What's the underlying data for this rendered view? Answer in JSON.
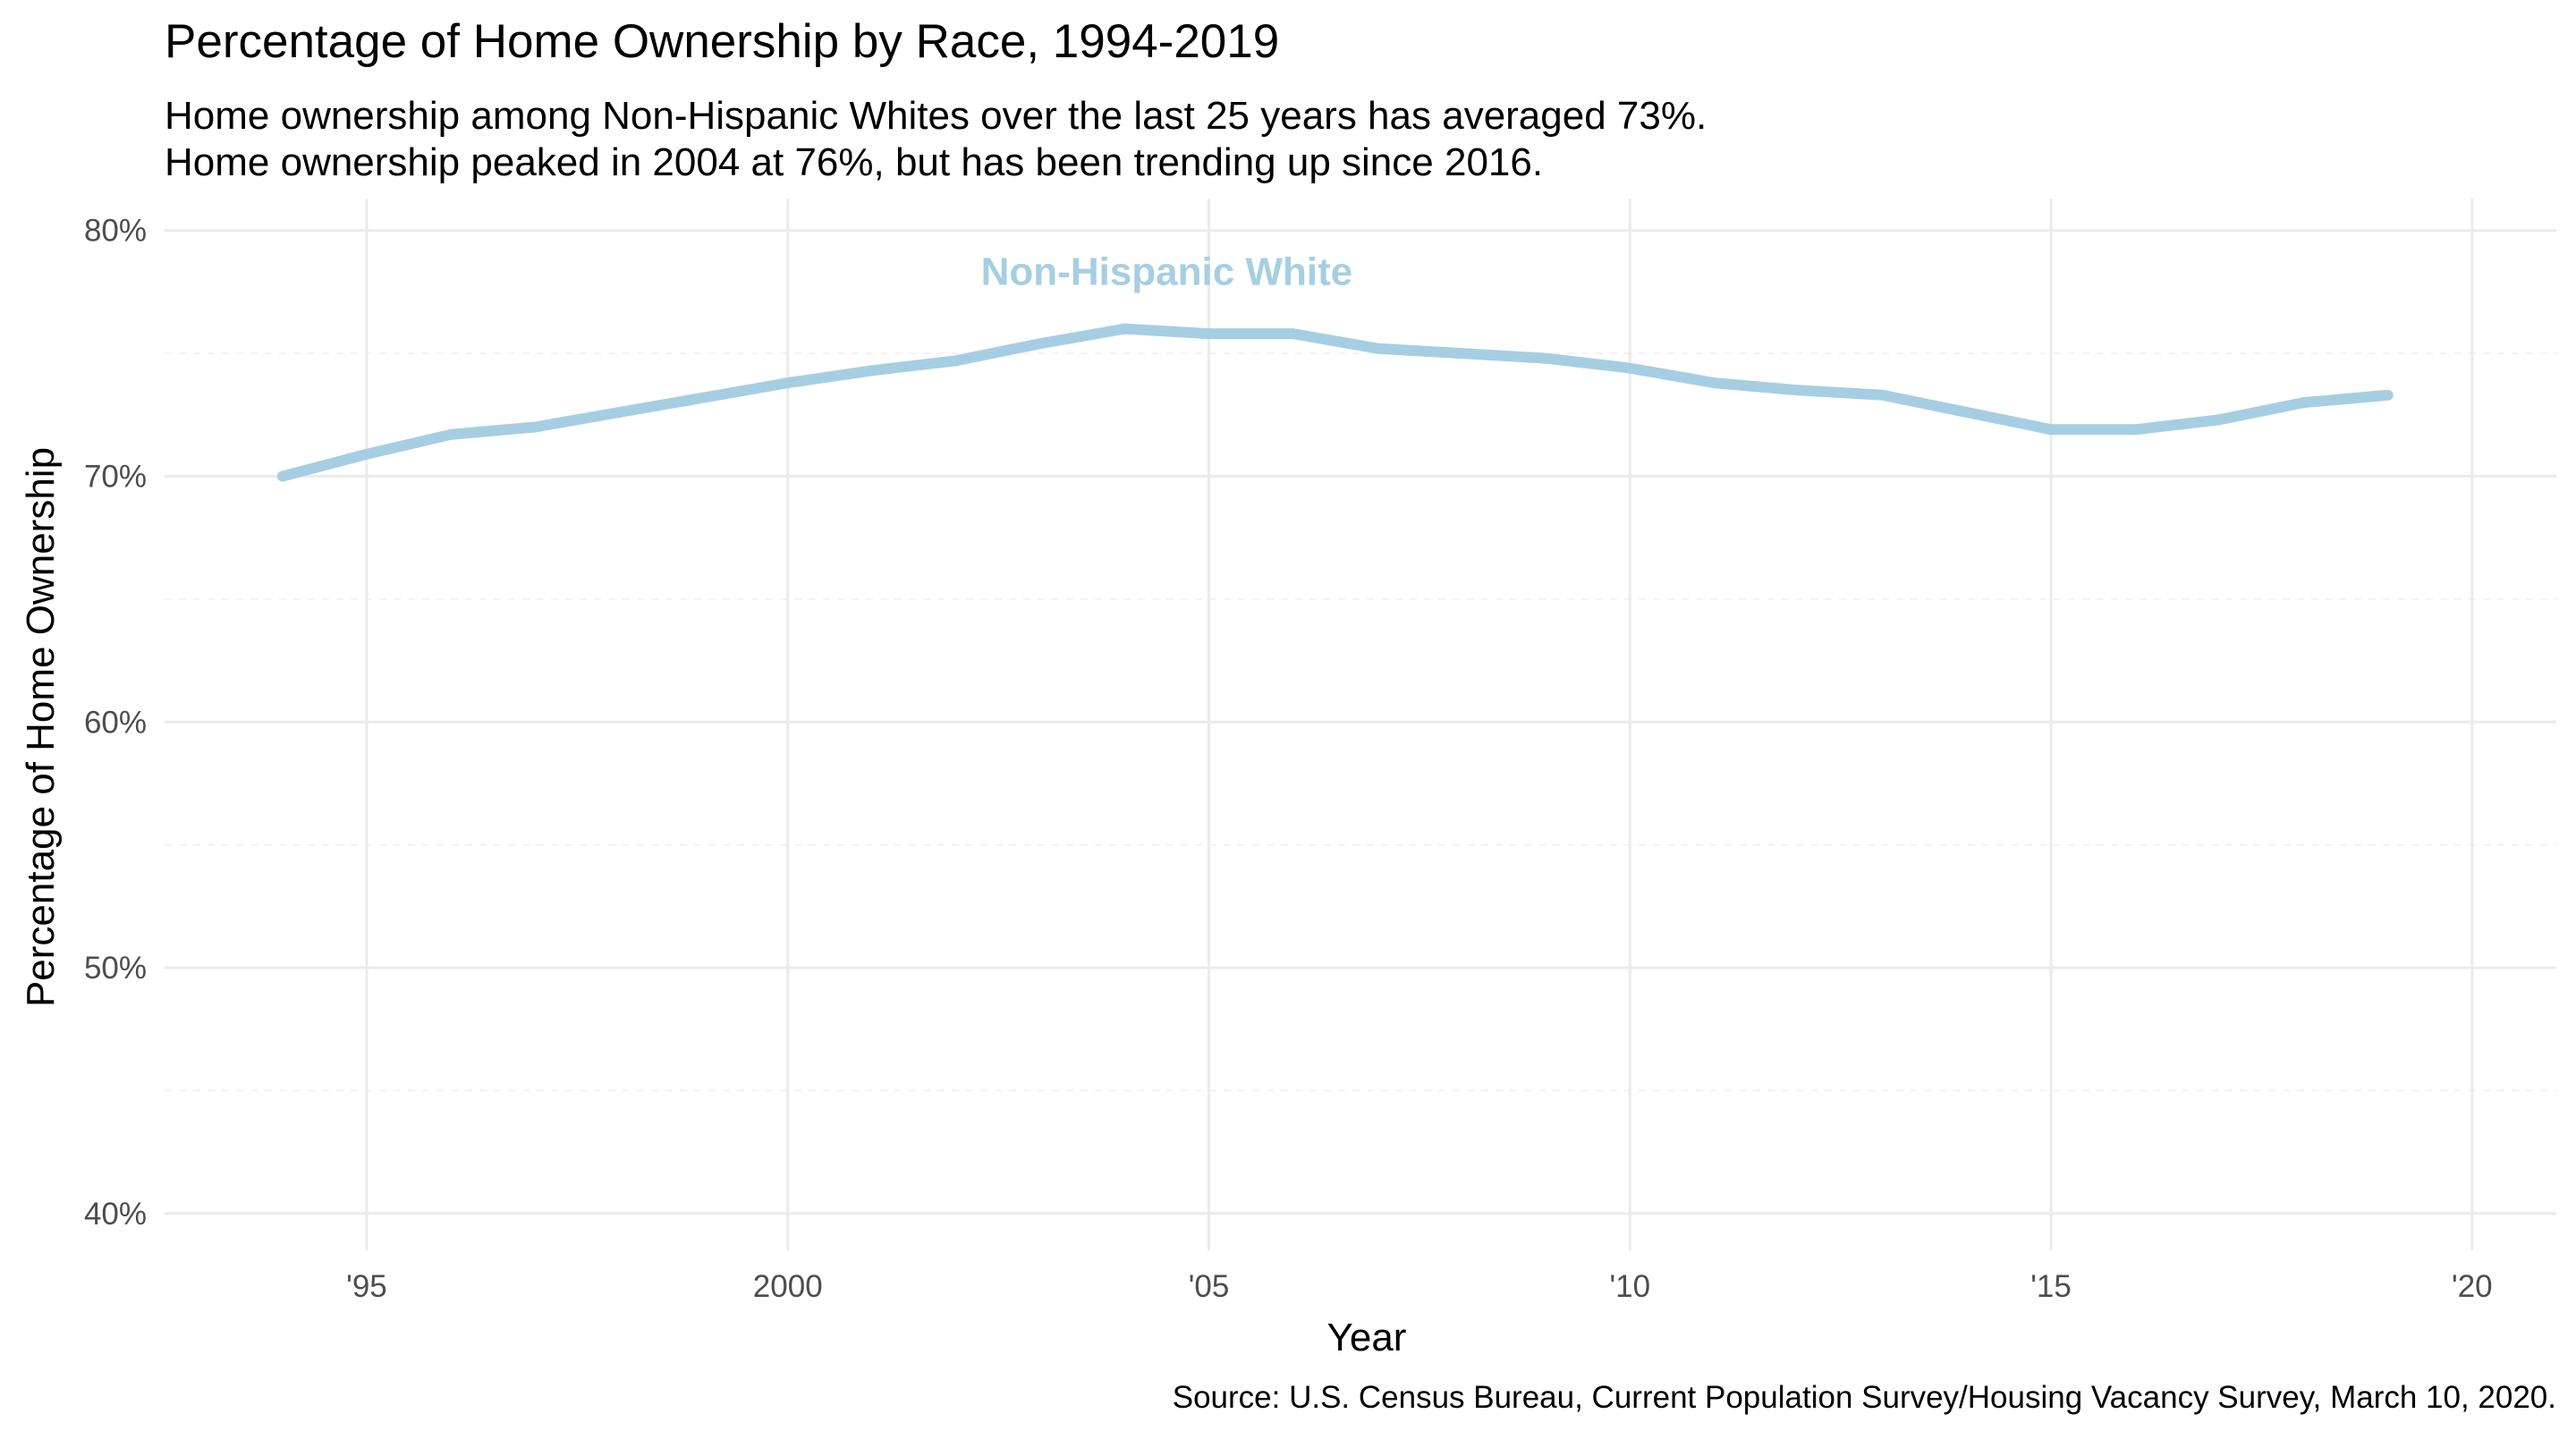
{
  "chart_data": {
    "type": "line",
    "title": "Percentage of Home Ownership by Race, 1994-2019",
    "subtitle_lines": [
      "Home ownership among Non-Hispanic Whites over the last 25 years has averaged 73%.",
      "Home ownership peaked in 2004 at 76%, but has been trending up since 2016."
    ],
    "xlabel": "Year",
    "ylabel": "Percentage of Home Ownership",
    "caption": "Source: U.S. Census Bureau, Current Population Survey/Housing Vacancy Survey, March 10, 2020.",
    "xlim": [
      1992.6,
      2021
    ],
    "ylim": [
      38.5,
      81.3
    ],
    "x_ticks": [
      1995,
      2000,
      2005,
      2010,
      2015,
      2020
    ],
    "x_tick_labels": [
      "'95",
      "2000",
      "'05",
      "'10",
      "'15",
      "'20"
    ],
    "y_ticks": [
      40,
      50,
      60,
      70,
      80
    ],
    "y_tick_labels": [
      "40%",
      "50%",
      "60%",
      "70%",
      "80%"
    ],
    "y_minor_ticks": [
      45,
      55,
      65,
      75
    ],
    "grid": true,
    "legend": "none",
    "series": [
      {
        "name": "Non-Hispanic White",
        "color": "#a6cee3",
        "label_at": {
          "x": 2004.5,
          "y": 78.3
        },
        "x": [
          1994,
          1995,
          1996,
          1997,
          1998,
          1999,
          2000,
          2001,
          2002,
          2003,
          2004,
          2005,
          2006,
          2007,
          2008,
          2009,
          2010,
          2011,
          2012,
          2013,
          2014,
          2015,
          2016,
          2017,
          2018,
          2019
        ],
        "y": [
          70.0,
          70.9,
          71.7,
          72.0,
          72.6,
          73.2,
          73.8,
          74.3,
          74.7,
          75.4,
          76.0,
          75.8,
          75.8,
          75.2,
          75.0,
          74.8,
          74.4,
          73.8,
          73.5,
          73.3,
          72.6,
          71.9,
          71.9,
          72.3,
          73.0,
          73.3
        ]
      }
    ]
  }
}
